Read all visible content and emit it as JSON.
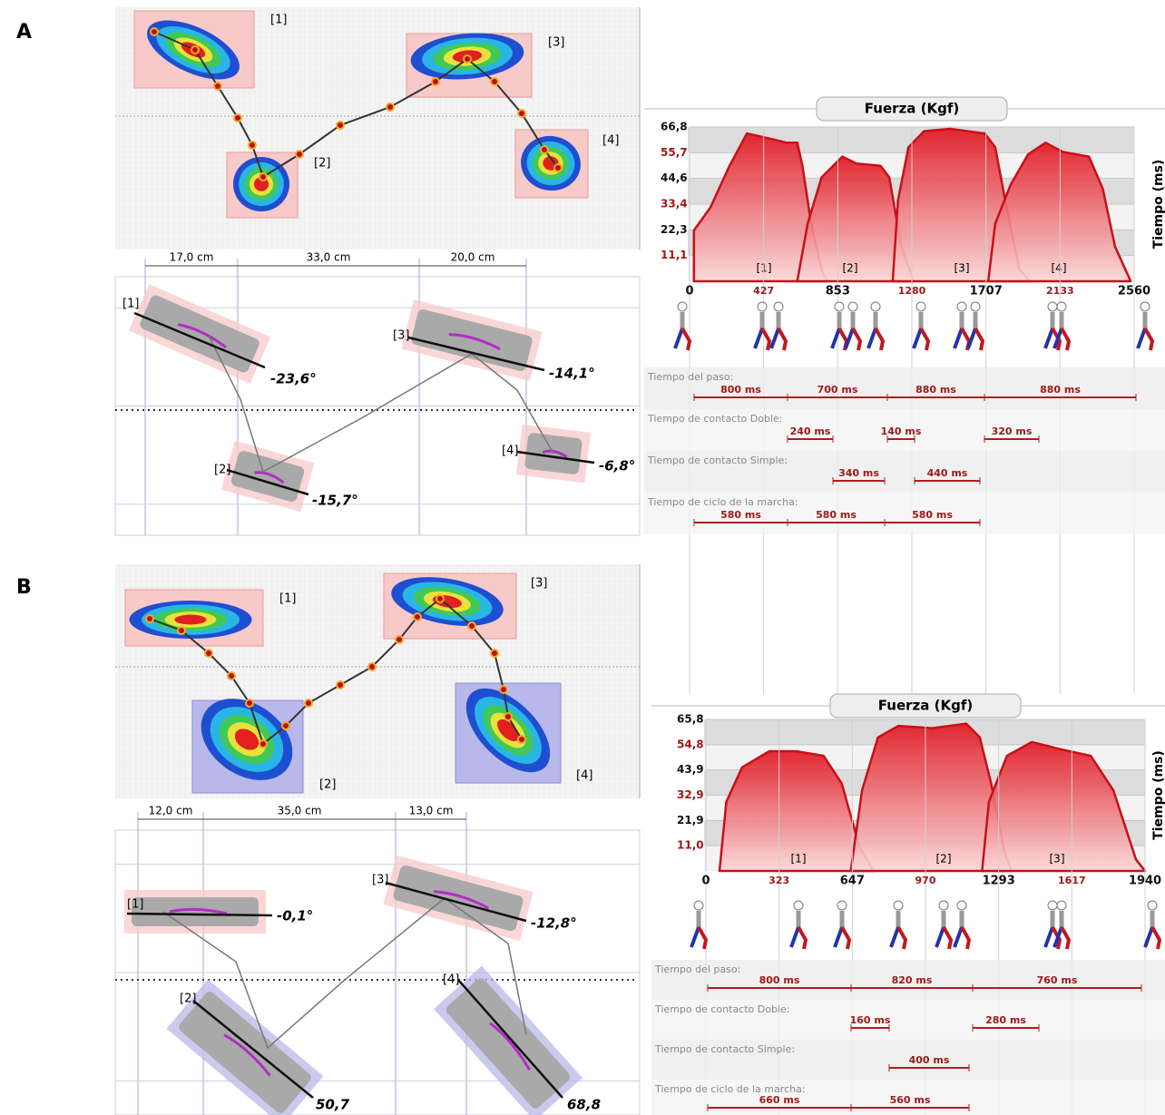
{
  "panels": [
    {
      "label": "A",
      "footprints": [
        {
          "id": "[1]",
          "angle": "-23,6°"
        },
        {
          "id": "[2]",
          "angle": "-15,7°"
        },
        {
          "id": "[3]",
          "angle": "-14,1°"
        },
        {
          "id": "[4]",
          "angle": "-6,8°"
        }
      ],
      "distances": [
        "17,0 cm",
        "33,0 cm",
        "20,0 cm"
      ],
      "force": {
        "title": "Fuerza (Kgf)",
        "axis_label": "Tiempo (ms)",
        "yticks": [
          "66,8",
          "55,7",
          "44,6",
          "33,4",
          "22,3",
          "11,1"
        ],
        "xticks": [
          "0",
          "427",
          "853",
          "1280",
          "1707",
          "2133",
          "2560"
        ],
        "steps": [
          "[1]",
          "[2]",
          "[3]",
          "[4]"
        ]
      },
      "timing": [
        {
          "label": "Tiempo del paso:",
          "values": [
            "800 ms",
            "700 ms",
            "880 ms",
            "880 ms"
          ]
        },
        {
          "label": "Tiempo de contacto Doble:",
          "values": [
            "240 ms",
            "140 ms",
            "320 ms"
          ]
        },
        {
          "label": "Tiempo de contacto Simple:",
          "values": [
            "340 ms",
            "440 ms"
          ]
        },
        {
          "label": "Tiempo de ciclo de la marcha:",
          "values": [
            "580 ms",
            "580 ms",
            "580 ms"
          ]
        }
      ]
    },
    {
      "label": "B",
      "footprints": [
        {
          "id": "[1]",
          "angle": "-0,1°"
        },
        {
          "id": "[2]",
          "angle": "50,7"
        },
        {
          "id": "[3]",
          "angle": "-12,8°"
        },
        {
          "id": "[4]",
          "angle": "68,8"
        }
      ],
      "distances": [
        "12,0 cm",
        "35,0 cm",
        "13,0 cm"
      ],
      "force": {
        "title": "Fuerza (Kgf)",
        "axis_label": "Tiempo (ms)",
        "yticks": [
          "65,8",
          "54,8",
          "43,9",
          "32,9",
          "21,9",
          "11,0"
        ],
        "xticks": [
          "0",
          "323",
          "647",
          "970",
          "1293",
          "1617",
          "1940"
        ],
        "steps": [
          "[1]",
          "[2]",
          "[3]"
        ]
      },
      "timing": [
        {
          "label": "Tiempo del paso:",
          "values": [
            "800 ms",
            "820 ms",
            "760 ms"
          ]
        },
        {
          "label": "Tiempo de contacto Doble:",
          "values": [
            "160 ms",
            "280 ms"
          ]
        },
        {
          "label": "Tiempo de contacto Simple:",
          "values": [
            "400 ms"
          ]
        },
        {
          "label": "Tiempo de ciclo de la marcha:",
          "values": [
            "660 ms",
            "560 ms"
          ]
        }
      ]
    }
  ]
}
